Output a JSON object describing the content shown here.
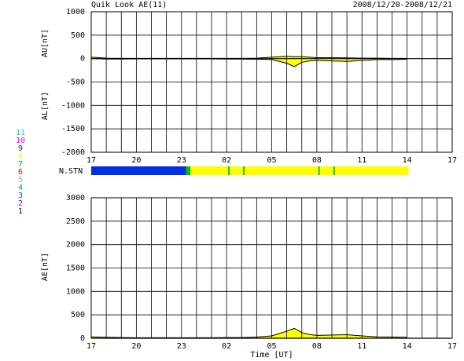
{
  "title": "Quik Look AE(11)",
  "date_range": "2008/12/20-2008/12/21",
  "station_legend": [
    {
      "label": 11,
      "color": "#00e0e0"
    },
    {
      "label": 10,
      "color": "#ff00ff"
    },
    {
      "label": 9,
      "color": "#0030e0"
    },
    {
      "label": 8,
      "color": "#ffff00"
    },
    {
      "label": 7,
      "color": "#00c000"
    },
    {
      "label": 6,
      "color": "#e00000"
    },
    {
      "label": 5,
      "color": "#b0b0b0"
    },
    {
      "label": 4,
      "color": "#00a0a0"
    },
    {
      "label": 3,
      "color": "#008080"
    },
    {
      "label": 2,
      "color": "#a000a0"
    },
    {
      "label": 1,
      "color": "#0000a0"
    }
  ],
  "station_bar": {
    "label": "N.STN",
    "segments": [
      {
        "start": 17,
        "end": 23.3,
        "stations": 9
      },
      {
        "start": 23.3,
        "end": 23.6,
        "stations": 7
      },
      {
        "start": 23.6,
        "end": 26.1,
        "stations": 8
      },
      {
        "start": 26.1,
        "end": 26.2,
        "stations": 7
      },
      {
        "start": 26.2,
        "end": 27.1,
        "stations": 8
      },
      {
        "start": 27.1,
        "end": 27.2,
        "stations": 7
      },
      {
        "start": 27.2,
        "end": 32.1,
        "stations": 8
      },
      {
        "start": 32.1,
        "end": 32.2,
        "stations": 7
      },
      {
        "start": 32.2,
        "end": 33.1,
        "stations": 8
      },
      {
        "start": 33.1,
        "end": 33.2,
        "stations": 7
      },
      {
        "start": 33.2,
        "end": 38.1,
        "stations": 8
      }
    ]
  },
  "chart_data": [
    {
      "type": "band",
      "fill": "#ffff00",
      "line_color": "#000000",
      "grid": true,
      "grid_step_x": 1,
      "xlim": [
        17,
        41
      ],
      "xticks": [
        17,
        20,
        23,
        {
          "value": 26,
          "label": "02"
        },
        {
          "value": 29,
          "label": "05"
        },
        {
          "value": 32,
          "label": "08"
        },
        {
          "value": 35,
          "label": "11"
        },
        {
          "value": 38,
          "label": "14"
        },
        {
          "value": 41,
          "label": "17"
        }
      ],
      "ylim": [
        -2000,
        1000
      ],
      "yticks": [
        -2000,
        -1500,
        -1000,
        -500,
        0,
        500,
        1000
      ],
      "x": [
        17,
        18,
        19,
        20,
        21,
        22,
        23,
        24,
        25,
        26,
        27,
        28,
        29,
        29.5,
        30,
        30.5,
        31,
        31.5,
        32,
        33,
        34,
        35,
        36,
        37,
        38
      ],
      "series": [
        {
          "name": "AU[nT]",
          "values": [
            30,
            10,
            5,
            5,
            5,
            5,
            5,
            5,
            5,
            5,
            5,
            10,
            30,
            40,
            50,
            40,
            40,
            30,
            20,
            20,
            15,
            10,
            10,
            5,
            5
          ]
        },
        {
          "name": "AL[nT]",
          "values": [
            0,
            -10,
            -10,
            -5,
            -5,
            -5,
            -5,
            -5,
            -5,
            -10,
            -10,
            -15,
            -20,
            -60,
            -100,
            -170,
            -80,
            -50,
            -40,
            -50,
            -60,
            -40,
            -20,
            -20,
            -15
          ]
        }
      ]
    },
    {
      "type": "area",
      "fill": "#ffff00",
      "line_color": "#000000",
      "grid": true,
      "grid_step_x": 1,
      "xlabel": "Time [UT]",
      "xlim": [
        17,
        41
      ],
      "xticks": [
        17,
        20,
        23,
        {
          "value": 26,
          "label": "02"
        },
        {
          "value": 29,
          "label": "05"
        },
        {
          "value": 32,
          "label": "08"
        },
        {
          "value": 35,
          "label": "11"
        },
        {
          "value": 38,
          "label": "14"
        },
        {
          "value": 41,
          "label": "17"
        }
      ],
      "ylim": [
        0,
        3000
      ],
      "yticks": [
        0,
        500,
        1000,
        1500,
        2000,
        2500,
        3000
      ],
      "x": [
        17,
        18,
        19,
        20,
        21,
        22,
        23,
        24,
        25,
        26,
        27,
        28,
        29,
        29.5,
        30,
        30.5,
        31,
        31.5,
        32,
        33,
        34,
        35,
        36,
        37,
        38
      ],
      "series": [
        {
          "name": "AE[nT]",
          "values": [
            30,
            20,
            15,
            10,
            10,
            10,
            10,
            10,
            10,
            15,
            15,
            25,
            50,
            100,
            150,
            210,
            120,
            80,
            60,
            70,
            75,
            50,
            30,
            25,
            20
          ]
        }
      ]
    }
  ]
}
